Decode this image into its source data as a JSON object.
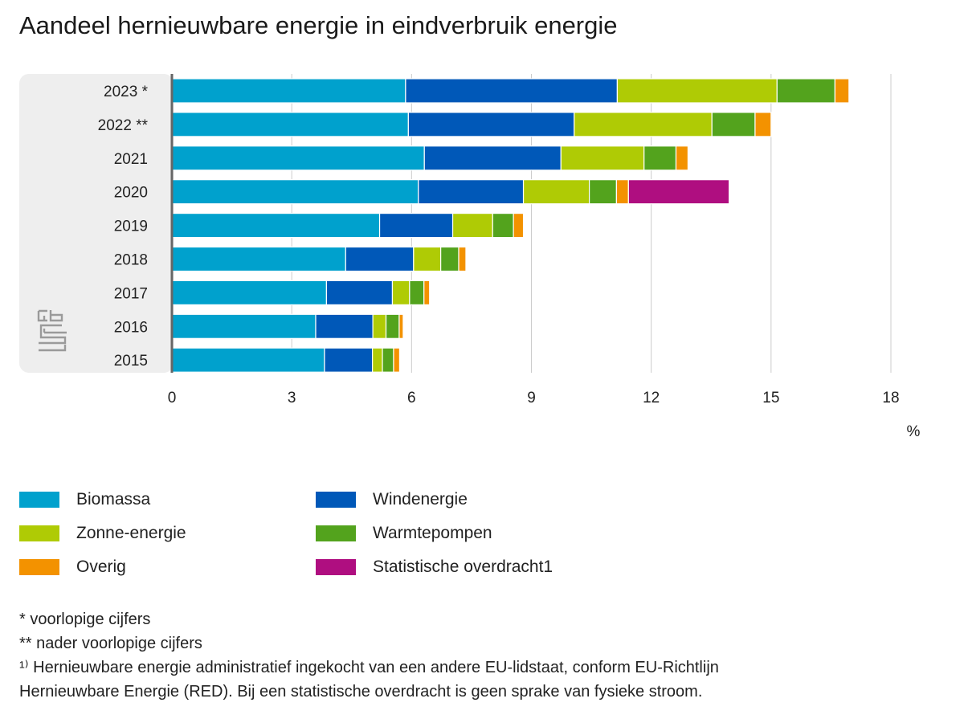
{
  "chart_data": {
    "type": "bar",
    "orientation": "horizontal",
    "stacked": true,
    "title": "Aandeel hernieuwbare energie in eindverbruik energie",
    "xlabel": "%",
    "xlim": [
      0,
      18
    ],
    "xticks": [
      "0",
      "3",
      "6",
      "9",
      "12",
      "15",
      "18"
    ],
    "grid": true,
    "legend_position": "bottom",
    "categories": [
      "2023 *",
      "2022 **",
      "2021",
      "2020",
      "2019",
      "2018",
      "2017",
      "2016",
      "2015"
    ],
    "series": [
      {
        "name": "Biomassa",
        "color": "#00a1cd",
        "values": [
          5.85,
          5.92,
          6.32,
          6.17,
          5.2,
          4.35,
          3.87,
          3.6,
          3.82
        ]
      },
      {
        "name": "Windenergie",
        "color": "#0058b8",
        "values": [
          5.3,
          4.15,
          3.42,
          2.63,
          1.83,
          1.7,
          1.65,
          1.43,
          1.2
        ]
      },
      {
        "name": "Zonne-energie",
        "color": "#afcb05",
        "values": [
          4.0,
          3.45,
          2.08,
          1.65,
          1.0,
          0.68,
          0.43,
          0.33,
          0.25
        ]
      },
      {
        "name": "Warmtepompen",
        "color": "#53a31d",
        "values": [
          1.45,
          1.08,
          0.8,
          0.68,
          0.52,
          0.45,
          0.36,
          0.33,
          0.28
        ]
      },
      {
        "name": "Overig",
        "color": "#f39200",
        "values": [
          0.35,
          0.4,
          0.3,
          0.3,
          0.25,
          0.18,
          0.14,
          0.1,
          0.15
        ]
      },
      {
        "name": "Statistische overdracht1",
        "color": "#af0e80",
        "values": [
          0,
          0,
          0,
          2.52,
          0,
          0,
          0,
          0,
          0
        ]
      }
    ]
  },
  "notes": [
    "* voorlopige cijfers",
    "** nader voorlopige cijfers",
    "¹⁾ Hernieuwbare energie administratief ingekocht van een andere EU-lidstaat, conform EU-Richtlijn",
    "Hernieuwbare Energie (RED). Bij een statistische overdracht is geen sprake van fysieke stroom."
  ],
  "logo": {
    "icon": "cbs-logo-icon",
    "color": "#9a9a9a"
  },
  "colors": {
    "gridline": "#cccccc",
    "axis": "#666666",
    "label_panel": "#eeeeee"
  }
}
